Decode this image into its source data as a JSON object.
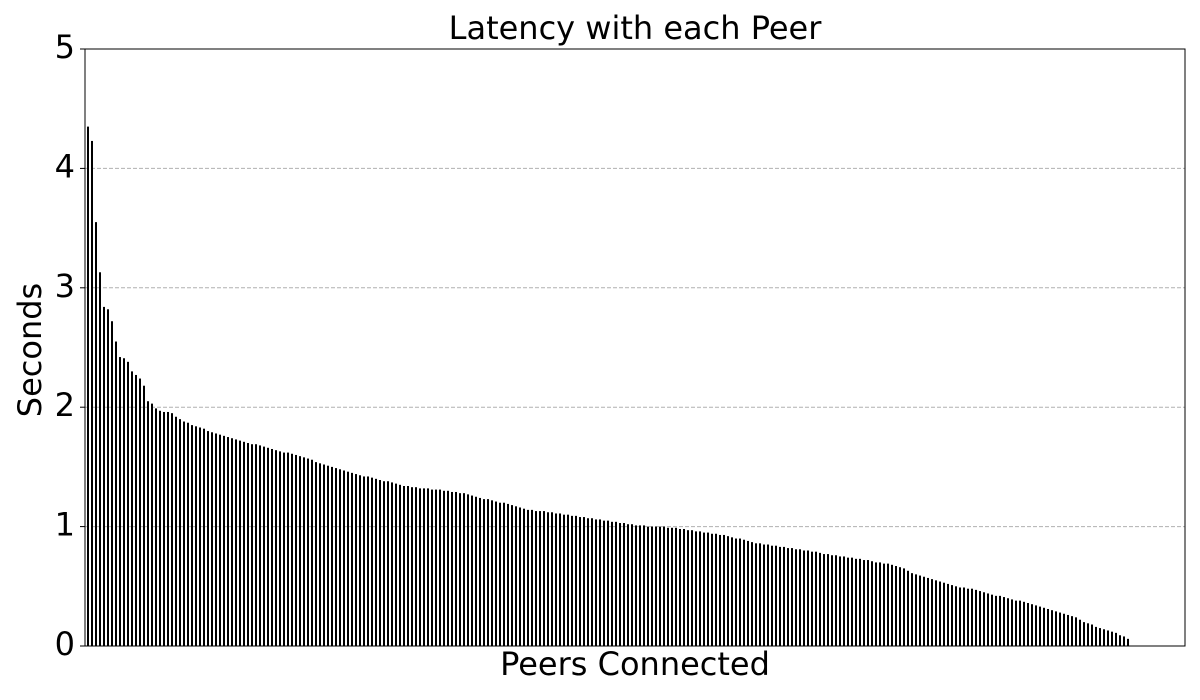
{
  "chart_data": {
    "type": "bar",
    "title": "Latency with each Peer",
    "xlabel": "Peers Connected",
    "ylabel": "Seconds",
    "color": "#000000",
    "ylim": [
      0,
      5
    ],
    "yticks": [
      0,
      1,
      2,
      3,
      4,
      5
    ],
    "grid": true,
    "categories": [
      null,
      null,
      null,
      null,
      null,
      null,
      null,
      null,
      null,
      null,
      null,
      null,
      null,
      null,
      null,
      null,
      null,
      null,
      null,
      null,
      null,
      null,
      null,
      null,
      null,
      null,
      null,
      null,
      null,
      null,
      null,
      null,
      null,
      null,
      null,
      null,
      null,
      null,
      null,
      null,
      null,
      null,
      null,
      null,
      null,
      null,
      null,
      null,
      null,
      null,
      null,
      null,
      null,
      null,
      null,
      null,
      null,
      null,
      null,
      null,
      null,
      null,
      null,
      null,
      null,
      null,
      null,
      null,
      null,
      null,
      null,
      null,
      null,
      null,
      null,
      null,
      null,
      null,
      null,
      null,
      null,
      null,
      null,
      null,
      null,
      null,
      null,
      null,
      null,
      null,
      null,
      null,
      null,
      null,
      null,
      null,
      null,
      null,
      null,
      null,
      null,
      null,
      null,
      null,
      null,
      null,
      null,
      null,
      null,
      null,
      null,
      null,
      null,
      null,
      null,
      null,
      null,
      null,
      null,
      null,
      null,
      null,
      null,
      null,
      null,
      null,
      null,
      null,
      null,
      null,
      null,
      null,
      null,
      null,
      null,
      null,
      null,
      null,
      null,
      null,
      null,
      null,
      null,
      null,
      null,
      null,
      null,
      null,
      null,
      null,
      null,
      null,
      null,
      null,
      null,
      null,
      null,
      null,
      null,
      null,
      null,
      null,
      null,
      null,
      null,
      null,
      null,
      null,
      null,
      null,
      null,
      null,
      null,
      null,
      null,
      null,
      null,
      null,
      null,
      null,
      null,
      null,
      null,
      null,
      null,
      null,
      null,
      null,
      null,
      null,
      null,
      null,
      null,
      null,
      null,
      null,
      null,
      null,
      null,
      null,
      null,
      null,
      null,
      null,
      null,
      null,
      null,
      null,
      null,
      null,
      null,
      null,
      null,
      null,
      null,
      null,
      null,
      null,
      null,
      null,
      null,
      null,
      null,
      null,
      null,
      null,
      null,
      null,
      null,
      null,
      null,
      null,
      null,
      null,
      null,
      null,
      null,
      null,
      null,
      null,
      null,
      null,
      null,
      null,
      null,
      null,
      null,
      null,
      null,
      null,
      null,
      null,
      null,
      null,
      null,
      null,
      null,
      null,
      null,
      null,
      null
    ],
    "values": [
      4.35,
      4.23,
      3.55,
      3.13,
      2.84,
      2.82,
      2.72,
      2.55,
      2.42,
      2.41,
      2.38,
      2.3,
      2.27,
      2.24,
      2.18,
      2.05,
      2.03,
      1.99,
      1.97,
      1.96,
      1.96,
      1.95,
      1.92,
      1.9,
      1.88,
      1.87,
      1.85,
      1.84,
      1.83,
      1.82,
      1.8,
      1.79,
      1.78,
      1.77,
      1.76,
      1.75,
      1.74,
      1.73,
      1.72,
      1.71,
      1.7,
      1.69,
      1.69,
      1.68,
      1.67,
      1.66,
      1.65,
      1.64,
      1.63,
      1.62,
      1.62,
      1.61,
      1.6,
      1.59,
      1.58,
      1.57,
      1.56,
      1.54,
      1.53,
      1.52,
      1.51,
      1.5,
      1.49,
      1.48,
      1.47,
      1.46,
      1.45,
      1.44,
      1.43,
      1.42,
      1.42,
      1.41,
      1.4,
      1.39,
      1.38,
      1.38,
      1.37,
      1.36,
      1.35,
      1.34,
      1.34,
      1.33,
      1.33,
      1.32,
      1.32,
      1.32,
      1.31,
      1.31,
      1.31,
      1.3,
      1.3,
      1.29,
      1.29,
      1.28,
      1.28,
      1.27,
      1.26,
      1.25,
      1.24,
      1.23,
      1.23,
      1.22,
      1.21,
      1.2,
      1.2,
      1.19,
      1.18,
      1.17,
      1.16,
      1.15,
      1.14,
      1.14,
      1.13,
      1.13,
      1.13,
      1.12,
      1.12,
      1.11,
      1.11,
      1.1,
      1.1,
      1.09,
      1.09,
      1.08,
      1.08,
      1.07,
      1.07,
      1.06,
      1.06,
      1.05,
      1.05,
      1.04,
      1.04,
      1.03,
      1.03,
      1.02,
      1.02,
      1.01,
      1.01,
      1.01,
      1.0,
      1.0,
      1.0,
      1.0,
      1.0,
      0.99,
      0.99,
      0.99,
      0.98,
      0.98,
      0.97,
      0.97,
      0.96,
      0.96,
      0.95,
      0.95,
      0.94,
      0.94,
      0.93,
      0.93,
      0.92,
      0.91,
      0.9,
      0.9,
      0.89,
      0.88,
      0.87,
      0.86,
      0.86,
      0.85,
      0.85,
      0.84,
      0.84,
      0.83,
      0.83,
      0.82,
      0.82,
      0.81,
      0.81,
      0.8,
      0.8,
      0.79,
      0.79,
      0.78,
      0.77,
      0.77,
      0.76,
      0.76,
      0.75,
      0.75,
      0.74,
      0.74,
      0.73,
      0.73,
      0.72,
      0.72,
      0.71,
      0.7,
      0.7,
      0.69,
      0.69,
      0.68,
      0.67,
      0.66,
      0.65,
      0.63,
      0.61,
      0.6,
      0.59,
      0.58,
      0.57,
      0.56,
      0.55,
      0.54,
      0.53,
      0.52,
      0.51,
      0.5,
      0.49,
      0.49,
      0.48,
      0.48,
      0.47,
      0.46,
      0.45,
      0.44,
      0.43,
      0.42,
      0.42,
      0.41,
      0.4,
      0.39,
      0.38,
      0.38,
      0.37,
      0.36,
      0.35,
      0.34,
      0.33,
      0.32,
      0.31,
      0.3,
      0.29,
      0.28,
      0.27,
      0.26,
      0.25,
      0.24,
      0.22,
      0.2,
      0.19,
      0.18,
      0.16,
      0.15,
      0.14,
      0.13,
      0.12,
      0.11,
      0.09,
      0.08,
      0.06
    ]
  }
}
